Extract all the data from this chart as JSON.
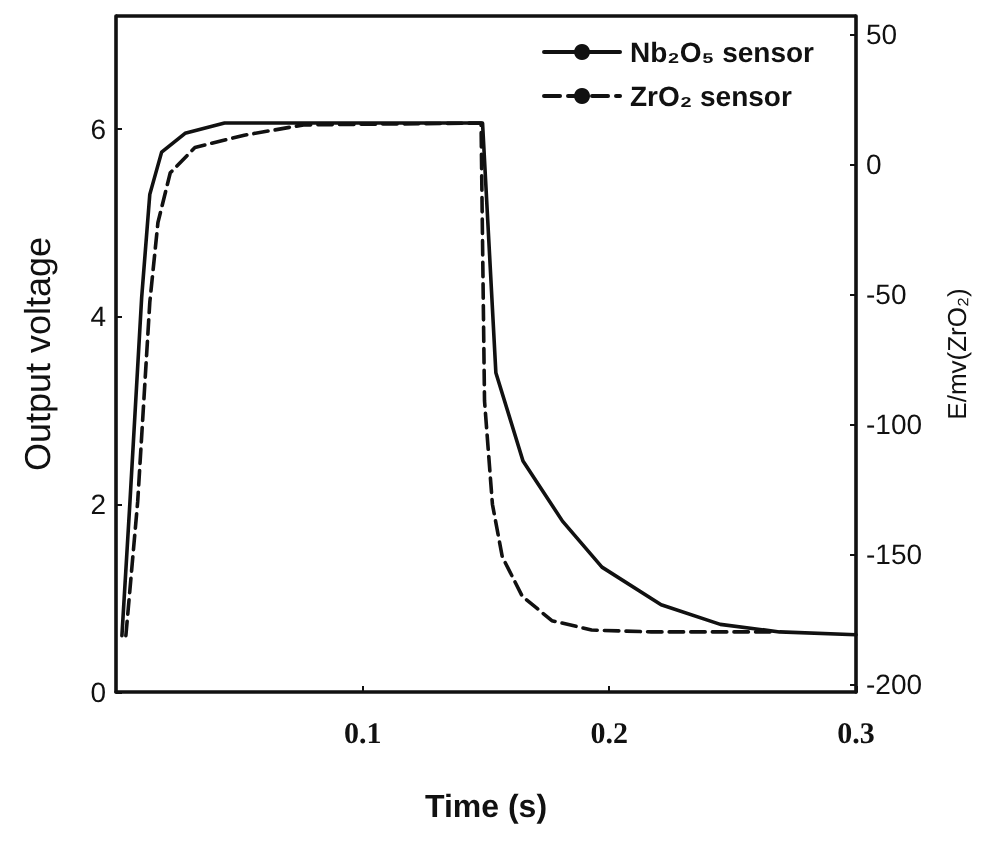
{
  "chart_data": {
    "type": "line",
    "xlabel": "Time (s)",
    "ylabel": "Output voltage",
    "y2label": "E/mv(ZrO₂)",
    "xlim": [
      0,
      0.3
    ],
    "xticks": [
      0.1,
      0.2,
      0.3
    ],
    "ylim": [
      0,
      7.2
    ],
    "yticks": [
      0,
      2,
      4,
      6
    ],
    "y2lim": [
      -203,
      57
    ],
    "y2ticks": [
      -200,
      -150,
      -100,
      -50,
      0,
      50
    ],
    "legend": "top right",
    "grid": false,
    "marker": "none",
    "series": [
      {
        "name": "Nb₂O₅ sensor",
        "color": "#111111",
        "line_style": "solid",
        "x": [
          0.0024,
          0.0056,
          0.0104,
          0.0137,
          0.0185,
          0.028,
          0.044,
          0.1486,
          0.154,
          0.165,
          0.181,
          0.197,
          0.221,
          0.245,
          0.269,
          0.3
        ],
        "values": [
          0.6,
          2.0,
          4.2,
          5.3,
          5.75,
          5.95,
          6.06,
          6.06,
          3.4,
          2.46,
          1.82,
          1.33,
          0.93,
          0.72,
          0.64,
          0.61
        ]
      },
      {
        "name": "ZrO₂ sensor",
        "color": "#111111",
        "line_style": "dashed",
        "x": [
          0.004,
          0.0088,
          0.0137,
          0.017,
          0.022,
          0.032,
          0.052,
          0.076,
          0.148,
          0.1494,
          0.1526,
          0.1566,
          0.1647,
          0.1767,
          0.1928,
          0.2169,
          0.2651
        ],
        "values": [
          0.6,
          2.03,
          4.15,
          5.0,
          5.53,
          5.8,
          5.93,
          6.04,
          6.06,
          3.1,
          2.0,
          1.44,
          1.02,
          0.76,
          0.66,
          0.64,
          0.64
        ]
      }
    ]
  }
}
